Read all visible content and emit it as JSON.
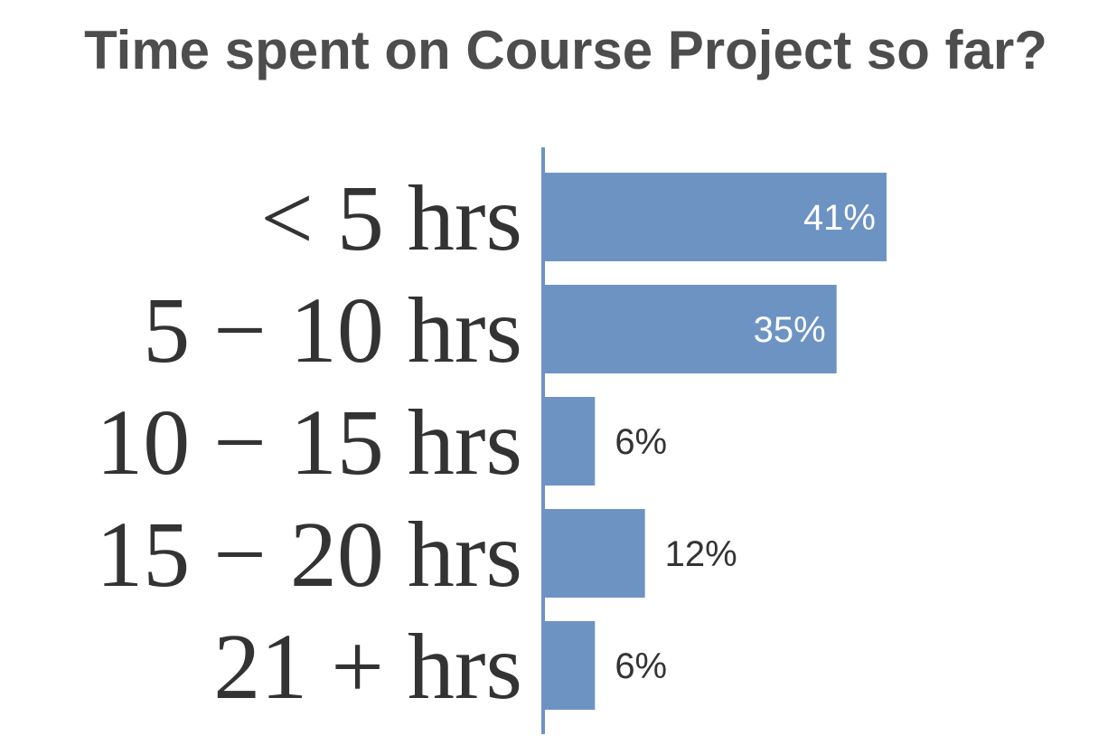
{
  "chart_data": {
    "type": "bar",
    "orientation": "horizontal",
    "title": "Time spent on Course Project so far?",
    "categories": [
      "< 5 hrs",
      "5 − 10 hrs",
      "10 − 15 hrs",
      "15 − 20 hrs",
      "21 +  hrs"
    ],
    "values": [
      41,
      35,
      6,
      12,
      6
    ],
    "value_labels": [
      "41%",
      "35%",
      "6%",
      "12%",
      "6%"
    ],
    "unit": "%",
    "xlim": [
      0,
      41
    ],
    "grid": false,
    "legend": "none"
  },
  "colors": {
    "bar": "#6d93c3",
    "axis": "#6d93c3",
    "title": "#4d4d4d",
    "label": "#333333",
    "label_inside": "#ffffff",
    "label_outside": "#333333"
  }
}
